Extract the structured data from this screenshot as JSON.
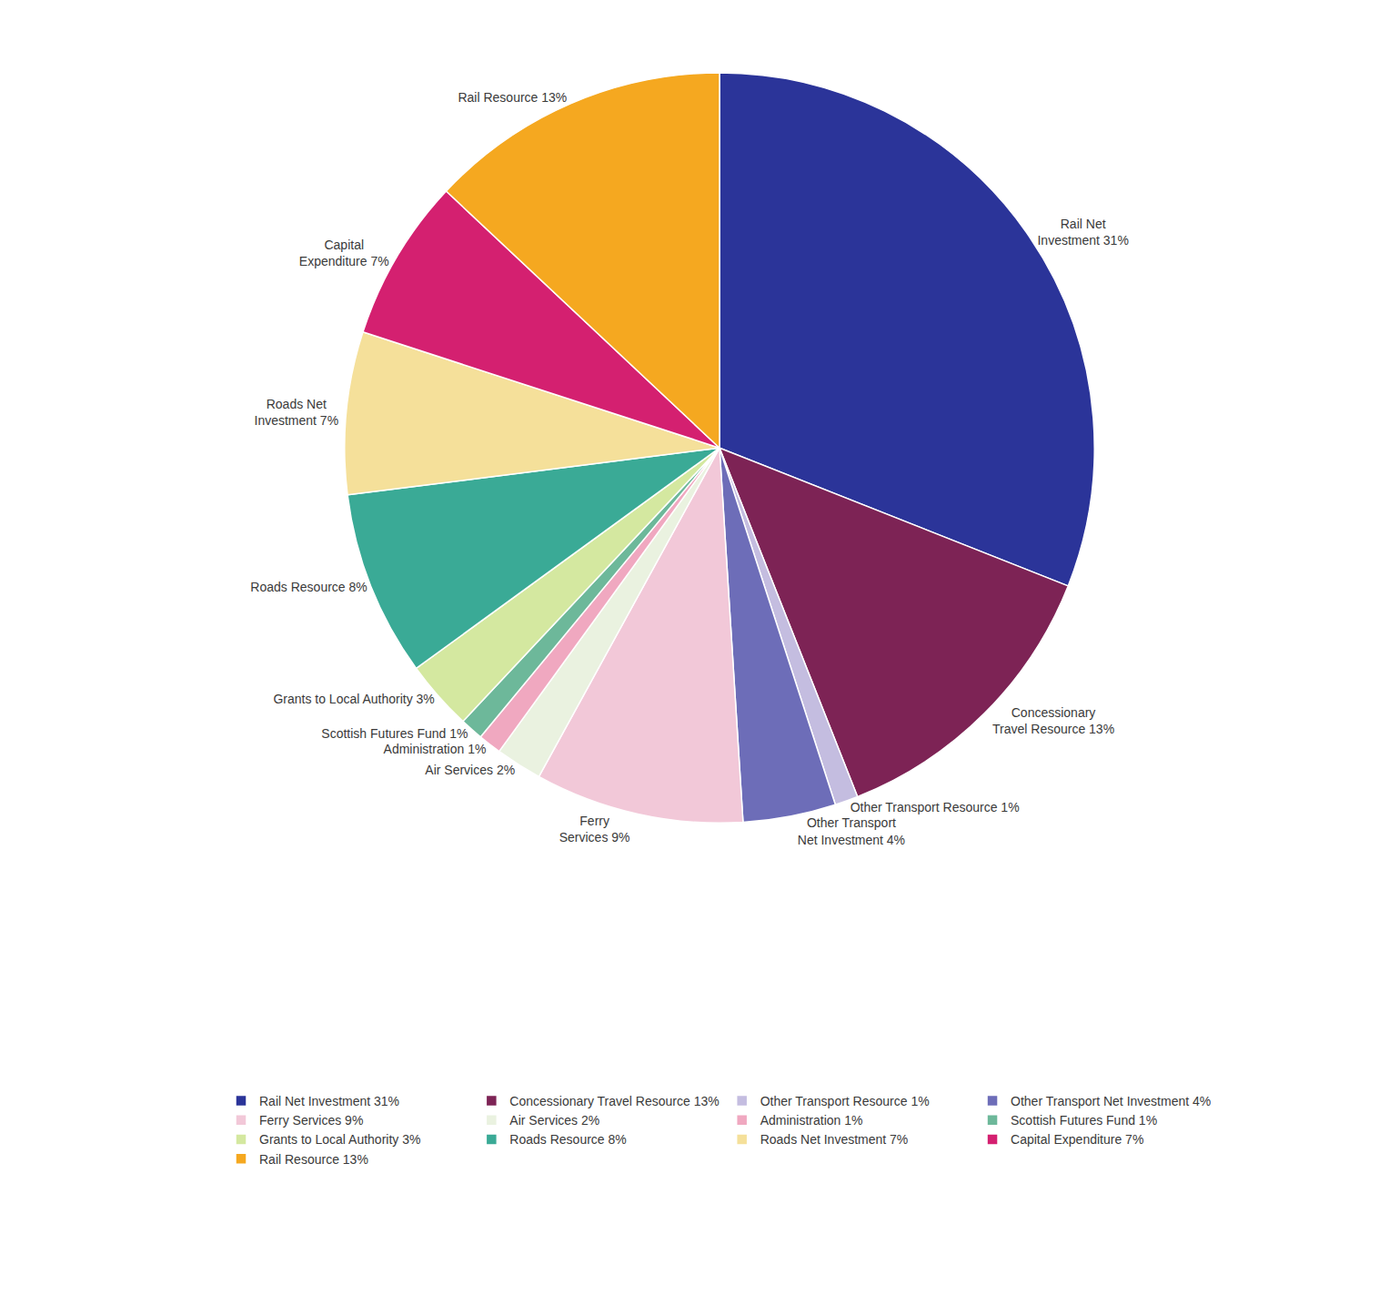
{
  "chart_data": {
    "type": "pie",
    "categories": [
      "Rail Net Investment 31%",
      "Concessionary Travel Resource 13%",
      "Other Transport Resource 1%",
      "Other Transport Net Investment 4%",
      "Ferry Services 9%",
      "Air Services 2%",
      "Administration 1%",
      "Scottish Futures Fund 1%",
      "Grants to Local Authority 3%",
      "Roads Resource 8%",
      "Roads Net Investment 7%",
      "Capital Expenditure 7%",
      "Rail Resource 13%"
    ],
    "values": [
      31,
      13,
      1,
      4,
      9,
      2,
      1,
      1,
      3,
      8,
      7,
      7,
      13
    ],
    "colors": [
      "#2b3499",
      "#7d2355",
      "#c4bde0",
      "#6d6db8",
      "#f2c8d8",
      "#eaf2e0",
      "#f0a8c0",
      "#6db89a",
      "#d4e8a0",
      "#3aaa96",
      "#f5e09a",
      "#d42070",
      "#f5a820"
    ],
    "annotations": [
      "Rail Net\nInvestment 31%",
      "Concessionary\nTravel Resource 13%",
      "Other Transport Resource 1%",
      "Other Transport\nNet Investment 4%",
      "Ferry\nServices 9%",
      "Air Services 2%",
      "Administration 1%",
      "Scottish Futures Fund 1%",
      "Grants to Local Authority 3%",
      "Roads Resource 8%",
      "Roads Net\nInvestment 7%",
      "Capital\nExpenditure 7%",
      "Rail Resource 13%"
    ],
    "legend": "bottom"
  }
}
